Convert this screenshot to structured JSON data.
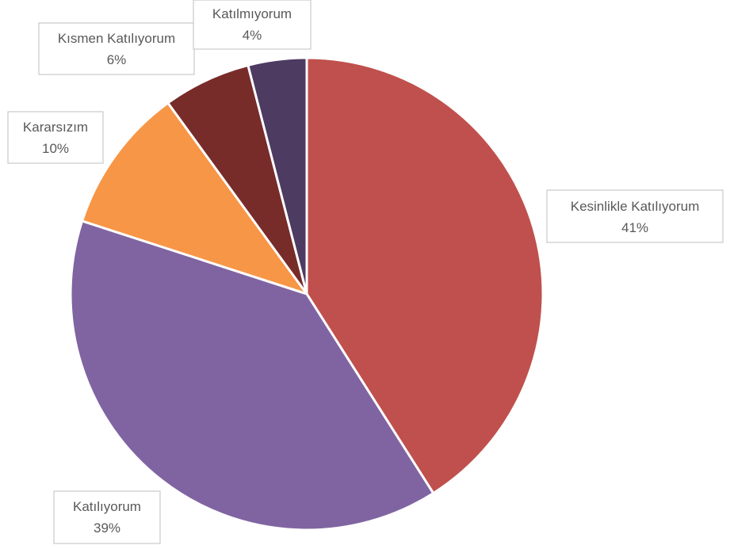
{
  "chart_data": {
    "type": "pie",
    "title": "",
    "start_angle_deg": 0,
    "direction": "clockwise",
    "legend": "none",
    "slices": [
      {
        "label": "Kesinlikle Katılıyorum",
        "value": 41,
        "value_label": "41%",
        "color": "#c0504d"
      },
      {
        "label": "Katılıyorum",
        "value": 39,
        "value_label": "39%",
        "color": "#8064a2"
      },
      {
        "label": "Kararsızım",
        "value": 10,
        "value_label": "10%",
        "color": "#f79646"
      },
      {
        "label": "Kısmen Katılıyorum",
        "value": 6,
        "value_label": "6%",
        "color": "#772c2a"
      },
      {
        "label": "Katılmıyorum",
        "value": 4,
        "value_label": "4%",
        "color": "#4d3b62"
      }
    ]
  }
}
